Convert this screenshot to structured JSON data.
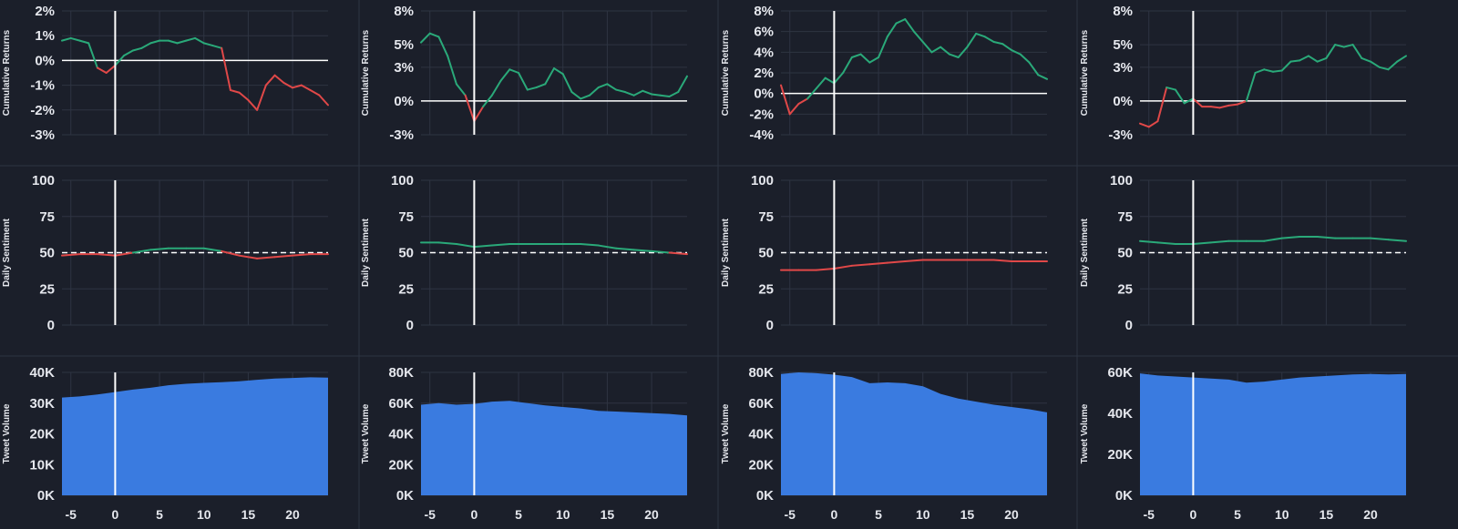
{
  "colors": {
    "background": "#1b1f2a",
    "grid": "#2e3442",
    "text": "#e6e8ee",
    "positive": "#2aa979",
    "negative": "#e04848",
    "volume": "#3a7be0",
    "reference": "#ffffff"
  },
  "chart_data": [
    {
      "type": "line",
      "ylabel": "Cumulative Returns",
      "ylim": [
        -3,
        2
      ],
      "yticks": [
        -3,
        -2,
        -1,
        0,
        1,
        2
      ],
      "ytick_labels": [
        "-3%",
        "-2%",
        "-1%",
        "0%",
        "1%",
        "2%"
      ],
      "baseline": 0,
      "event_x": 0,
      "xlim": [
        -6,
        24
      ],
      "x": [
        -6,
        -5,
        -4,
        -3,
        -2,
        -1,
        0,
        1,
        2,
        3,
        4,
        5,
        6,
        7,
        8,
        9,
        10,
        11,
        12,
        13,
        14,
        15,
        16,
        17,
        18,
        19,
        20,
        21,
        22,
        23,
        24
      ],
      "values": [
        0.8,
        0.9,
        0.8,
        0.7,
        -0.3,
        -0.5,
        -0.2,
        0.2,
        0.4,
        0.5,
        0.7,
        0.8,
        0.8,
        0.7,
        0.8,
        0.9,
        0.7,
        0.6,
        0.5,
        -1.2,
        -1.3,
        -1.6,
        -2.0,
        -1.0,
        -0.6,
        -0.9,
        -1.1,
        -1.0,
        -1.2,
        -1.4,
        -1.8
      ]
    },
    {
      "type": "line",
      "ylabel": "Cumulative Returns",
      "ylim": [
        -3,
        8
      ],
      "yticks": [
        -3,
        0,
        3,
        5,
        8
      ],
      "ytick_labels": [
        "-3%",
        "0%",
        "3%",
        "5%",
        "8%"
      ],
      "baseline": 0,
      "event_x": 0,
      "xlim": [
        -6,
        24
      ],
      "x": [
        -6,
        -5,
        -4,
        -3,
        -2,
        -1,
        0,
        1,
        2,
        3,
        4,
        5,
        6,
        7,
        8,
        9,
        10,
        11,
        12,
        13,
        14,
        15,
        16,
        17,
        18,
        19,
        20,
        21,
        22,
        23,
        24
      ],
      "values": [
        5.2,
        6.0,
        5.7,
        4.0,
        1.5,
        0.5,
        -1.8,
        -0.5,
        0.5,
        1.8,
        2.8,
        2.5,
        1.0,
        1.2,
        1.5,
        2.9,
        2.4,
        0.8,
        0.2,
        0.5,
        1.2,
        1.5,
        1.0,
        0.8,
        0.5,
        0.9,
        0.6,
        0.5,
        0.4,
        0.8,
        2.2
      ]
    },
    {
      "type": "line",
      "ylabel": "Cumulative Returns",
      "ylim": [
        -4,
        8
      ],
      "yticks": [
        -4,
        -2,
        0,
        2,
        4,
        6,
        8
      ],
      "ytick_labels": [
        "-4%",
        "-2%",
        "0%",
        "2%",
        "4%",
        "6%",
        "8%"
      ],
      "baseline": 0,
      "event_x": 0,
      "xlim": [
        -6,
        24
      ],
      "x": [
        -6,
        -5,
        -4,
        -3,
        -2,
        -1,
        0,
        1,
        2,
        3,
        4,
        5,
        6,
        7,
        8,
        9,
        10,
        11,
        12,
        13,
        14,
        15,
        16,
        17,
        18,
        19,
        20,
        21,
        22,
        23,
        24
      ],
      "values": [
        0.8,
        -2.0,
        -1.0,
        -0.5,
        0.5,
        1.5,
        1.0,
        2.0,
        3.5,
        3.8,
        3.0,
        3.5,
        5.5,
        6.8,
        7.2,
        6.0,
        5.0,
        4.0,
        4.5,
        3.8,
        3.5,
        4.5,
        5.8,
        5.5,
        5.0,
        4.8,
        4.2,
        3.8,
        3.0,
        1.8,
        1.4
      ]
    },
    {
      "type": "line",
      "ylabel": "Cumulative Returns",
      "ylim": [
        -3,
        8
      ],
      "yticks": [
        -3,
        0,
        3,
        5,
        8
      ],
      "ytick_labels": [
        "-3%",
        "0%",
        "3%",
        "5%",
        "8%"
      ],
      "baseline": 0,
      "event_x": 0,
      "xlim": [
        -6,
        24
      ],
      "x": [
        -6,
        -5,
        -4,
        -3,
        -2,
        -1,
        0,
        1,
        2,
        3,
        4,
        5,
        6,
        7,
        8,
        9,
        10,
        11,
        12,
        13,
        14,
        15,
        16,
        17,
        18,
        19,
        20,
        21,
        22,
        23,
        24
      ],
      "values": [
        -2.0,
        -2.3,
        -1.8,
        1.2,
        1.0,
        -0.2,
        0.2,
        -0.5,
        -0.5,
        -0.6,
        -0.4,
        -0.3,
        0.0,
        2.5,
        2.8,
        2.6,
        2.7,
        3.5,
        3.6,
        4.0,
        3.5,
        3.8,
        5.0,
        4.8,
        5.0,
        3.8,
        3.5,
        3.0,
        2.8,
        3.5,
        4.0
      ]
    },
    {
      "type": "line",
      "ylabel": "Daily Sentiment",
      "ylim": [
        0,
        100
      ],
      "yticks": [
        0,
        25,
        50,
        75,
        100
      ],
      "ytick_labels": [
        "0",
        "25",
        "50",
        "75",
        "100"
      ],
      "baseline": 50,
      "baseline_dashed": true,
      "event_x": 0,
      "xlim": [
        -6,
        24
      ],
      "x": [
        -6,
        -4,
        -2,
        0,
        2,
        4,
        6,
        8,
        10,
        12,
        14,
        16,
        18,
        20,
        22,
        24
      ],
      "values": [
        48,
        49,
        49,
        48,
        50,
        52,
        53,
        53,
        53,
        51,
        48,
        46,
        47,
        48,
        49,
        49
      ]
    },
    {
      "type": "line",
      "ylabel": "Daily Sentiment",
      "ylim": [
        0,
        100
      ],
      "yticks": [
        0,
        25,
        50,
        75,
        100
      ],
      "ytick_labels": [
        "0",
        "25",
        "50",
        "75",
        "100"
      ],
      "baseline": 50,
      "baseline_dashed": true,
      "event_x": 0,
      "xlim": [
        -6,
        24
      ],
      "x": [
        -6,
        -4,
        -2,
        0,
        2,
        4,
        6,
        8,
        10,
        12,
        14,
        16,
        18,
        20,
        22,
        24
      ],
      "values": [
        57,
        57,
        56,
        54,
        55,
        56,
        56,
        56,
        56,
        56,
        55,
        53,
        52,
        51,
        50,
        49
      ]
    },
    {
      "type": "line",
      "ylabel": "Daily Sentiment",
      "ylim": [
        0,
        100
      ],
      "yticks": [
        0,
        25,
        50,
        75,
        100
      ],
      "ytick_labels": [
        "0",
        "25",
        "50",
        "75",
        "100"
      ],
      "baseline": 50,
      "baseline_dashed": true,
      "event_x": 0,
      "xlim": [
        -6,
        24
      ],
      "x": [
        -6,
        -4,
        -2,
        0,
        2,
        4,
        6,
        8,
        10,
        12,
        14,
        16,
        18,
        20,
        22,
        24
      ],
      "values": [
        38,
        38,
        38,
        39,
        41,
        42,
        43,
        44,
        45,
        45,
        45,
        45,
        45,
        44,
        44,
        44
      ]
    },
    {
      "type": "line",
      "ylabel": "Daily Sentiment",
      "ylim": [
        0,
        100
      ],
      "yticks": [
        0,
        25,
        50,
        75,
        100
      ],
      "ytick_labels": [
        "0",
        "25",
        "50",
        "75",
        "100"
      ],
      "baseline": 50,
      "baseline_dashed": true,
      "event_x": 0,
      "xlim": [
        -6,
        24
      ],
      "x": [
        -6,
        -4,
        -2,
        0,
        2,
        4,
        6,
        8,
        10,
        12,
        14,
        16,
        18,
        20,
        22,
        24
      ],
      "values": [
        58,
        57,
        56,
        56,
        57,
        58,
        58,
        58,
        60,
        61,
        61,
        60,
        60,
        60,
        59,
        58
      ]
    },
    {
      "type": "area",
      "ylabel": "Tweet Volume",
      "ylim": [
        0,
        40000
      ],
      "yticks": [
        0,
        10000,
        20000,
        30000,
        40000
      ],
      "ytick_labels": [
        "0K",
        "10K",
        "20K",
        "30K",
        "40K"
      ],
      "xticks": [
        -5,
        0,
        5,
        10,
        15,
        20
      ],
      "xtick_labels": [
        "-5",
        "0",
        "5",
        "10",
        "15",
        "20"
      ],
      "event_x": 0,
      "xlim": [
        -6,
        24
      ],
      "x": [
        -6,
        -4,
        -2,
        0,
        2,
        4,
        6,
        8,
        10,
        12,
        14,
        16,
        18,
        20,
        22,
        24
      ],
      "values": [
        31800,
        32200,
        32800,
        33600,
        34400,
        35000,
        35800,
        36300,
        36600,
        36800,
        37100,
        37600,
        38000,
        38200,
        38400,
        38300
      ]
    },
    {
      "type": "area",
      "ylabel": "Tweet Volume",
      "ylim": [
        0,
        80000
      ],
      "yticks": [
        0,
        20000,
        40000,
        60000,
        80000
      ],
      "ytick_labels": [
        "0K",
        "20K",
        "40K",
        "60K",
        "80K"
      ],
      "xticks": [
        -5,
        0,
        5,
        10,
        15,
        20
      ],
      "xtick_labels": [
        "-5",
        "0",
        "5",
        "10",
        "15",
        "20"
      ],
      "event_x": 0,
      "xlim": [
        -6,
        24
      ],
      "x": [
        -6,
        -4,
        -2,
        0,
        2,
        4,
        6,
        8,
        10,
        12,
        14,
        16,
        18,
        20,
        22,
        24
      ],
      "values": [
        59000,
        60000,
        59000,
        59500,
        61000,
        61500,
        60000,
        58500,
        57500,
        56500,
        55000,
        54500,
        54000,
        53500,
        53000,
        52000
      ]
    },
    {
      "type": "area",
      "ylabel": "Tweet Volume",
      "ylim": [
        0,
        80000
      ],
      "yticks": [
        0,
        20000,
        40000,
        60000,
        80000
      ],
      "ytick_labels": [
        "0K",
        "20K",
        "40K",
        "60K",
        "80K"
      ],
      "xticks": [
        -5,
        0,
        5,
        10,
        15,
        20
      ],
      "xtick_labels": [
        "-5",
        "0",
        "5",
        "10",
        "15",
        "20"
      ],
      "event_x": 0,
      "xlim": [
        -6,
        24
      ],
      "x": [
        -6,
        -4,
        -2,
        0,
        2,
        4,
        6,
        8,
        10,
        12,
        14,
        16,
        18,
        20,
        22,
        24
      ],
      "values": [
        79000,
        80000,
        79500,
        78500,
        77000,
        73000,
        73500,
        73000,
        71000,
        66000,
        63000,
        61000,
        59000,
        57500,
        56000,
        54000
      ]
    },
    {
      "type": "area",
      "ylabel": "Tweet Volume",
      "ylim": [
        0,
        60000
      ],
      "yticks": [
        0,
        20000,
        40000,
        60000
      ],
      "ytick_labels": [
        "0K",
        "20K",
        "40K",
        "60K"
      ],
      "xticks": [
        -5,
        0,
        5,
        10,
        15,
        20
      ],
      "xtick_labels": [
        "-5",
        "0",
        "5",
        "10",
        "15",
        "20"
      ],
      "event_x": 0,
      "xlim": [
        -6,
        24
      ],
      "x": [
        -6,
        -4,
        -2,
        0,
        2,
        4,
        6,
        8,
        10,
        12,
        14,
        16,
        18,
        20,
        22,
        24
      ],
      "values": [
        59500,
        58500,
        58000,
        57500,
        57000,
        56500,
        55000,
        55500,
        56500,
        57500,
        58000,
        58500,
        59000,
        59200,
        59000,
        59200
      ]
    }
  ]
}
